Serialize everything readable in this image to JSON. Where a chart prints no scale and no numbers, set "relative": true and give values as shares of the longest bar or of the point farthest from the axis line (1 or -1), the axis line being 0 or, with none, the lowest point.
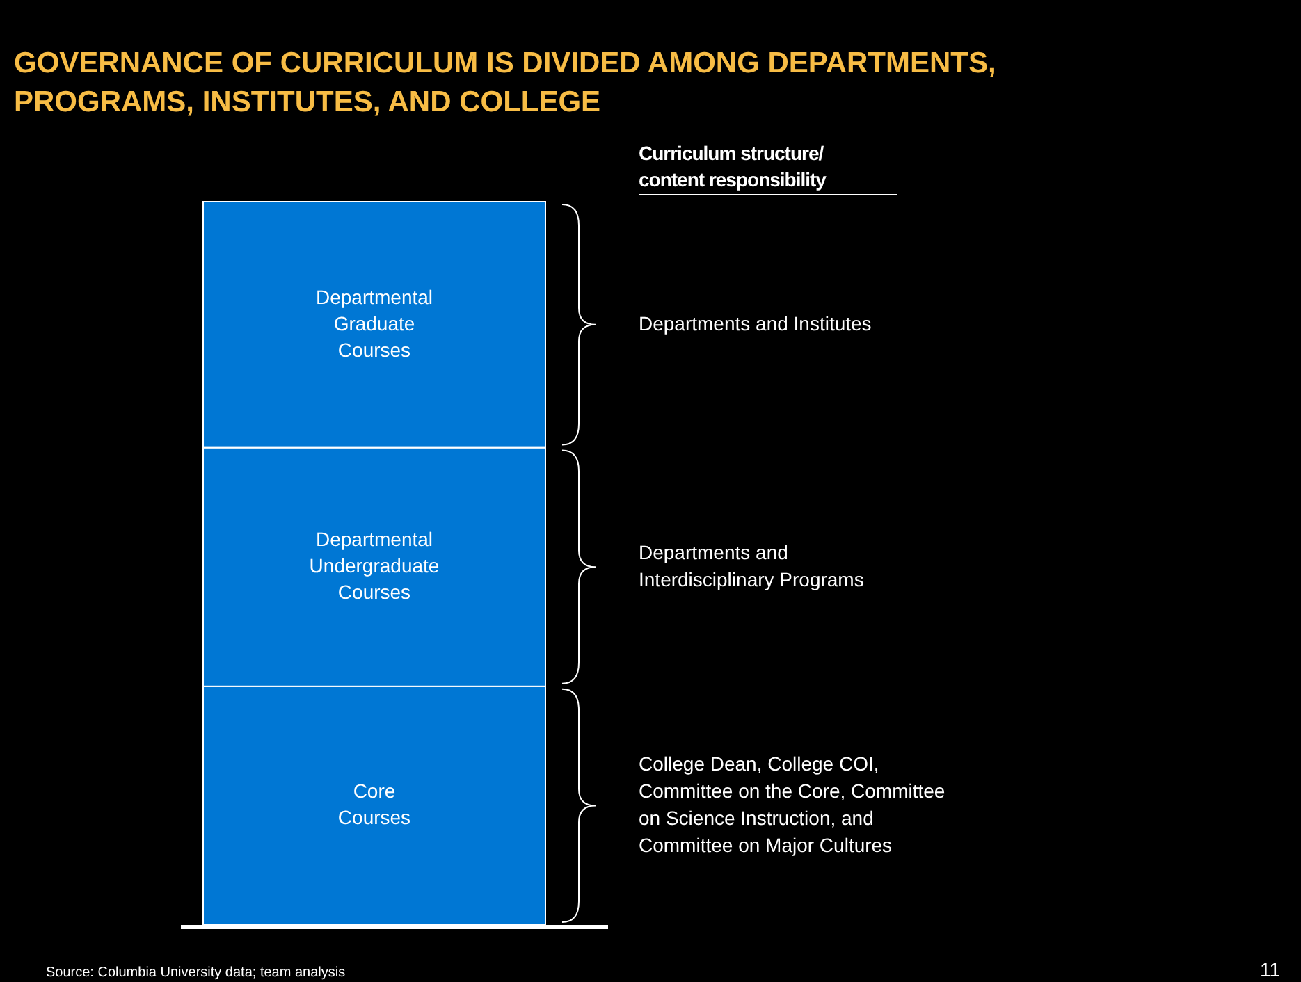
{
  "chart_data": {
    "type": "bar",
    "stacked": true,
    "relative": true,
    "title": "GOVERNANCE OF CURRICULUM IS DIVIDED AMONG DEPARTMENTS, PROGRAMS, INSTITUTES, AND COLLEGE",
    "categories": [
      null
    ],
    "series": [
      {
        "name": "Core Courses",
        "color": "#0077d4",
        "values": [
          0.33
        ]
      },
      {
        "name": "Departmental Undergraduate Courses",
        "color": "#0077d4",
        "values": [
          0.33
        ]
      },
      {
        "name": "Departmental Graduate Courses",
        "color": "#0077d4",
        "values": [
          0.34
        ]
      }
    ],
    "annotations": [
      "Curriculum structure/ content responsibility",
      "Departments and Institutes",
      "Departments and Interdisciplinary Programs",
      "College Dean, College COI, Committee on the Core, Committee on Science Instruction, and Committee on Major Cultures",
      "Source:  Columbia University data; team analysis",
      "11"
    ]
  }
}
